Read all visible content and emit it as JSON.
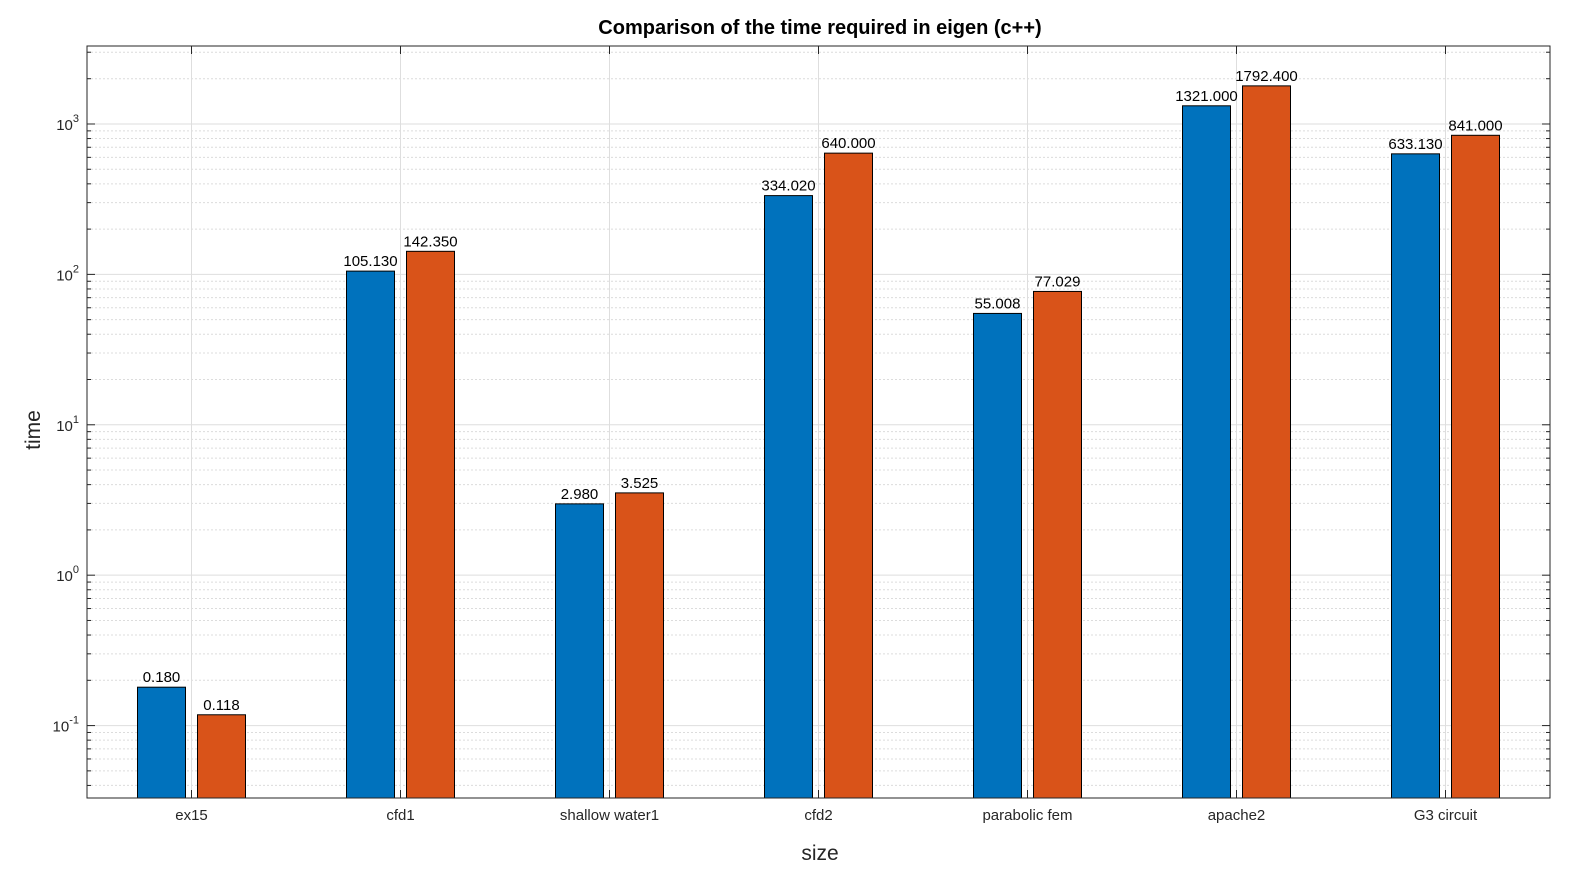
{
  "chart_data": {
    "type": "bar",
    "title": "Comparison of the time required in eigen (c++)",
    "xlabel": "size",
    "ylabel": "time",
    "yscale": "log",
    "ylim": [
      0.033,
      3300
    ],
    "grid": true,
    "minor_grid": true,
    "categories": [
      "ex15",
      "cfd1",
      "shallow water1",
      "cfd2",
      "parabolic fem",
      "apache2",
      "G3 circuit"
    ],
    "series": [
      {
        "color": "#0072BD",
        "values": [
          0.18,
          105.13,
          2.98,
          334.02,
          55.008,
          1321.0,
          633.13
        ],
        "labels": [
          "0.180",
          "105.130",
          "2.980",
          "334.020",
          "55.008",
          "1321.000",
          "633.130"
        ]
      },
      {
        "color": "#D95319",
        "values": [
          0.118,
          142.35,
          3.525,
          640.0,
          77.029,
          1792.4,
          841.0
        ],
        "labels": [
          "0.118",
          "142.350",
          "3.525",
          "640.000",
          "77.029",
          "1792.400",
          "841.000"
        ]
      }
    ],
    "y_ticks": [
      {
        "value": 0.1,
        "base": "10",
        "exp": "-1"
      },
      {
        "value": 1,
        "base": "10",
        "exp": "0"
      },
      {
        "value": 10,
        "base": "10",
        "exp": "1"
      },
      {
        "value": 100,
        "base": "10",
        "exp": "2"
      },
      {
        "value": 1000,
        "base": "10",
        "exp": "3"
      }
    ]
  }
}
